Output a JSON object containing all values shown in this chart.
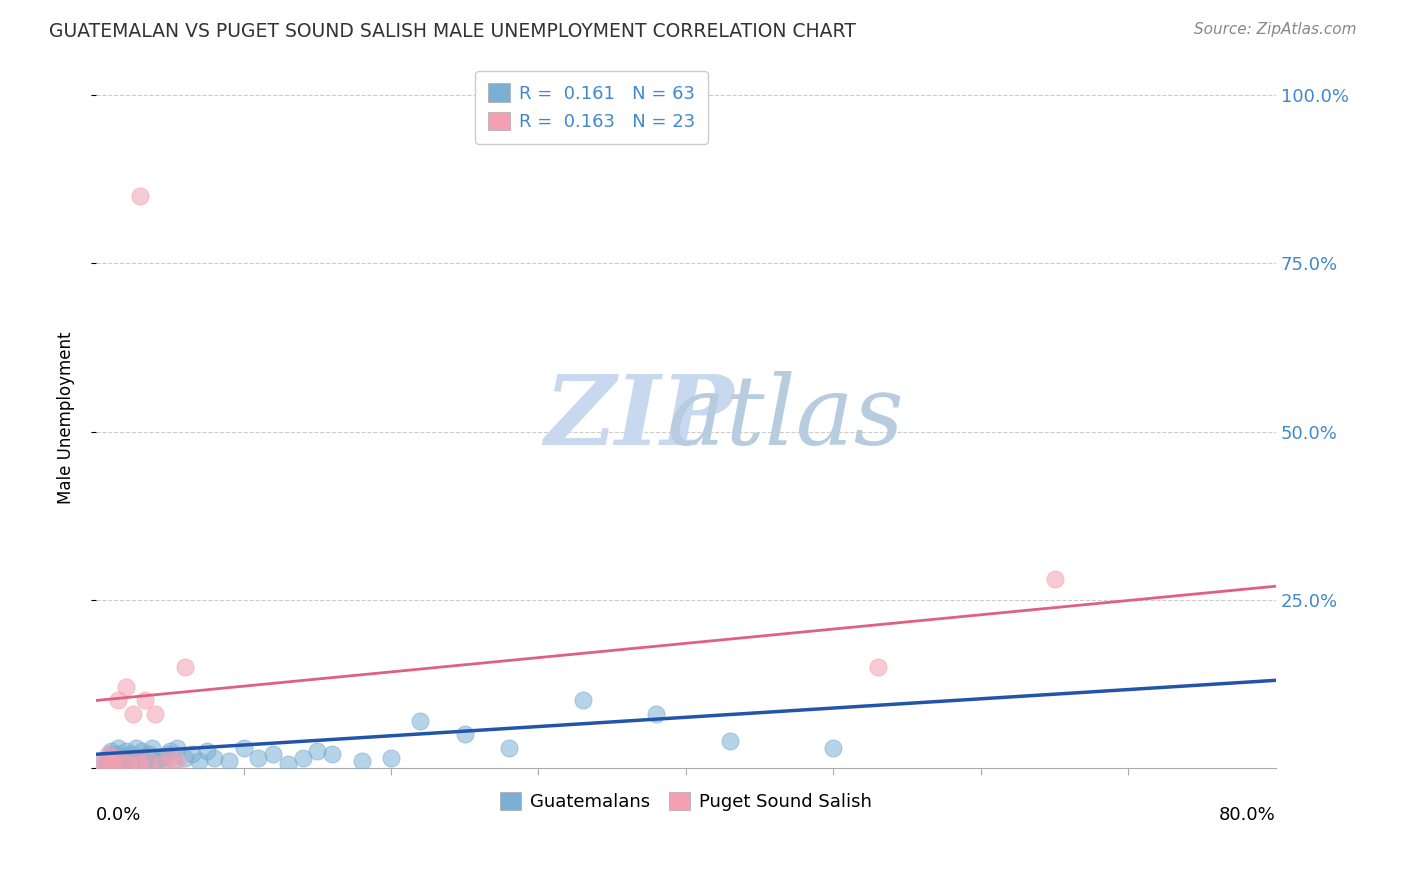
{
  "title": "GUATEMALAN VS PUGET SOUND SALISH MALE UNEMPLOYMENT CORRELATION CHART",
  "source": "Source: ZipAtlas.com",
  "ylabel": "Male Unemployment",
  "xlim": [
    0.0,
    0.8
  ],
  "ylim": [
    0.0,
    1.04
  ],
  "yticks": [
    0.0,
    0.25,
    0.5,
    0.75,
    1.0
  ],
  "ytick_labels": [
    "",
    "25.0%",
    "50.0%",
    "75.0%",
    "100.0%"
  ],
  "blue_line_color": "#2255aa",
  "pink_line_color": "#e06080",
  "scatter_blue": "#7bafd4",
  "scatter_pink": "#f4a0b0",
  "title_color": "#333333",
  "source_color": "#888888",
  "axis_label_color": "#4488cc",
  "watermark_zip": "ZIP",
  "watermark_atlas": "atlas",
  "grid_color": "#cccccc",
  "guatemalan_x": [
    0.005,
    0.007,
    0.008,
    0.009,
    0.01,
    0.01,
    0.01,
    0.01,
    0.01,
    0.011,
    0.012,
    0.013,
    0.015,
    0.015,
    0.015,
    0.016,
    0.017,
    0.018,
    0.019,
    0.02,
    0.02,
    0.021,
    0.022,
    0.023,
    0.024,
    0.025,
    0.027,
    0.028,
    0.03,
    0.031,
    0.032,
    0.034,
    0.036,
    0.038,
    0.04,
    0.042,
    0.045,
    0.048,
    0.05,
    0.053,
    0.055,
    0.06,
    0.065,
    0.07,
    0.075,
    0.08,
    0.09,
    0.1,
    0.11,
    0.12,
    0.13,
    0.14,
    0.15,
    0.16,
    0.18,
    0.2,
    0.22,
    0.25,
    0.28,
    0.33,
    0.38,
    0.43,
    0.5
  ],
  "guatemalan_y": [
    0.01,
    0.005,
    0.015,
    0.003,
    0.01,
    0.02,
    0.005,
    0.008,
    0.025,
    0.003,
    0.01,
    0.015,
    0.005,
    0.02,
    0.03,
    0.008,
    0.015,
    0.003,
    0.01,
    0.005,
    0.025,
    0.01,
    0.015,
    0.005,
    0.02,
    0.01,
    0.03,
    0.008,
    0.015,
    0.025,
    0.005,
    0.01,
    0.02,
    0.03,
    0.01,
    0.005,
    0.015,
    0.02,
    0.025,
    0.01,
    0.03,
    0.015,
    0.02,
    0.01,
    0.025,
    0.015,
    0.01,
    0.03,
    0.015,
    0.02,
    0.005,
    0.015,
    0.025,
    0.02,
    0.01,
    0.015,
    0.07,
    0.05,
    0.03,
    0.1,
    0.08,
    0.04,
    0.03
  ],
  "puget_x": [
    0.005,
    0.007,
    0.008,
    0.01,
    0.011,
    0.013,
    0.015,
    0.017,
    0.02,
    0.022,
    0.025,
    0.028,
    0.03,
    0.033,
    0.036,
    0.04,
    0.045,
    0.05,
    0.055,
    0.06,
    0.03,
    0.53,
    0.65
  ],
  "puget_y": [
    0.005,
    0.01,
    0.02,
    0.01,
    0.005,
    0.015,
    0.1,
    0.01,
    0.12,
    0.005,
    0.08,
    0.01,
    0.005,
    0.1,
    0.01,
    0.08,
    0.005,
    0.015,
    0.01,
    0.15,
    0.85,
    0.15,
    0.28
  ]
}
